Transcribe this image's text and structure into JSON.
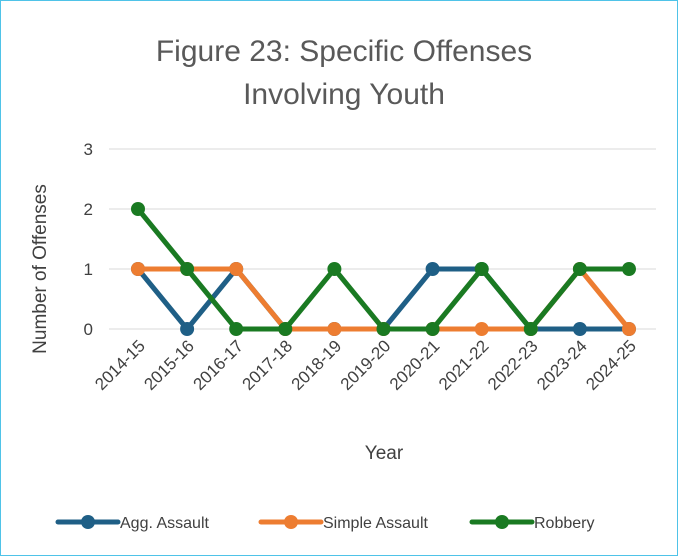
{
  "chart_data": {
    "type": "line",
    "title_lines": [
      "Figure 23: Specific Offenses",
      "Involving Youth"
    ],
    "xlabel": "Year",
    "ylabel": "Number of Offenses",
    "categories": [
      "2014-15",
      "2015-16",
      "2016-17",
      "2017-18",
      "2018-19",
      "2019-20",
      "2020-21",
      "2021-22",
      "2022-23",
      "2023-24",
      "2024-25"
    ],
    "ylim": [
      0,
      3
    ],
    "yticks": [
      "0",
      "1",
      "2",
      "3"
    ],
    "grid": true,
    "legend_position": "bottom",
    "series": [
      {
        "name": "Agg. Assault",
        "color": "#1f5f86",
        "values": [
          1,
          0,
          1,
          0,
          0,
          0,
          1,
          1,
          0,
          0,
          0
        ]
      },
      {
        "name": "Simple Assault",
        "color": "#ed7d31",
        "values": [
          1,
          1,
          1,
          0,
          0,
          0,
          0,
          0,
          0,
          1,
          0
        ]
      },
      {
        "name": "Robbery",
        "color": "#1a7a22",
        "values": [
          2,
          1,
          0,
          0,
          1,
          0,
          0,
          1,
          0,
          1,
          1
        ]
      }
    ]
  }
}
